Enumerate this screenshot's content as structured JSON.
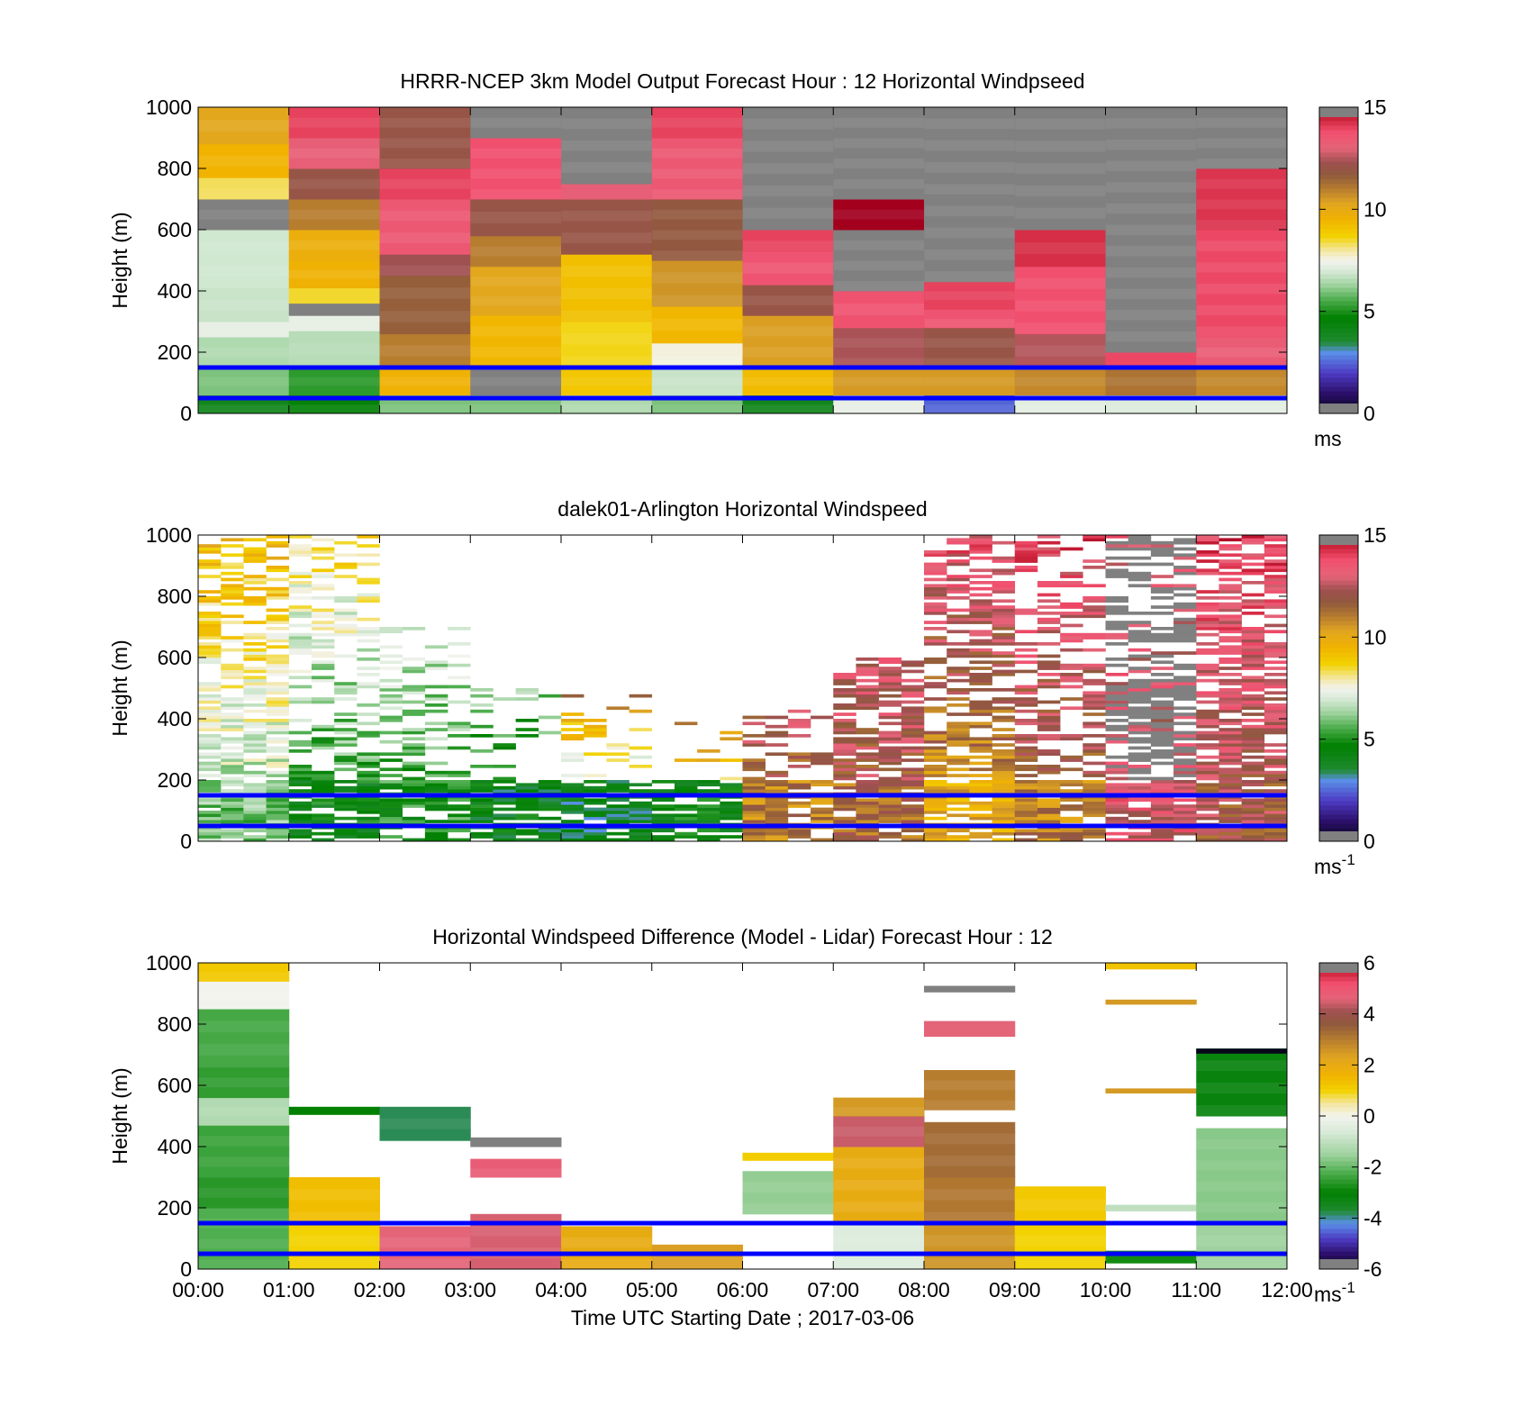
{
  "chart_data": [
    {
      "type": "heatmap",
      "title": "HRRR-NCEP 3km Model Output   Forecast Hour : 12 Horizontal Windpseed",
      "xlabel": "",
      "ylabel": "Height (m)",
      "ylim": [
        0,
        1000
      ],
      "yticks": [
        "0",
        "200",
        "400",
        "600",
        "800",
        "1000"
      ],
      "colorbar": {
        "range": [
          0,
          15
        ],
        "ticks": [
          "0",
          "5",
          "10",
          "15"
        ],
        "unit": "ms",
        "unit_sup": ""
      },
      "reference_lines_m": [
        50,
        150
      ],
      "sample": "model",
      "rows": [
        {
          "hour": 0,
          "cells": [
            [
              0,
              60,
              "s4"
            ],
            [
              60,
              150,
              "s6"
            ],
            [
              150,
              250,
              "s6.5"
            ],
            [
              250,
              300,
              "s7.3"
            ],
            [
              300,
              410,
              "s6.8"
            ],
            [
              410,
              600,
              "s6.9"
            ],
            [
              600,
              700,
              "gray"
            ],
            [
              700,
              770,
              "s8.3"
            ],
            [
              770,
              880,
              "s9.5"
            ],
            [
              880,
              1000,
              "s10.2"
            ]
          ]
        },
        {
          "hour": 1,
          "cells": [
            [
              0,
              60,
              "s4.5"
            ],
            [
              60,
              150,
              "s5.2"
            ],
            [
              150,
              270,
              "s6.6"
            ],
            [
              270,
              320,
              "s7.3"
            ],
            [
              320,
              360,
              "gray"
            ],
            [
              360,
              410,
              "s8.5"
            ],
            [
              410,
              500,
              "s9.6"
            ],
            [
              500,
              600,
              "s9.8"
            ],
            [
              600,
              700,
              "s11"
            ],
            [
              700,
              800,
              "s12"
            ],
            [
              800,
              900,
              "s13.2"
            ],
            [
              900,
              1000,
              "s14"
            ]
          ]
        },
        {
          "hour": 2,
          "cells": [
            [
              0,
              60,
              "s6"
            ],
            [
              60,
              150,
              "s9.6"
            ],
            [
              150,
              260,
              "s11"
            ],
            [
              260,
              450,
              "s11.6"
            ],
            [
              450,
              520,
              "s12.3"
            ],
            [
              520,
              700,
              "s13.5"
            ],
            [
              700,
              800,
              "s14"
            ],
            [
              800,
              1000,
              "s12"
            ]
          ]
        },
        {
          "hour": 3,
          "cells": [
            [
              0,
              60,
              "s6"
            ],
            [
              60,
              150,
              "gray"
            ],
            [
              150,
              320,
              "s9.4"
            ],
            [
              320,
              480,
              "s10.2"
            ],
            [
              480,
              580,
              "s11"
            ],
            [
              580,
              700,
              "s12"
            ],
            [
              700,
              900,
              "s13.8"
            ],
            [
              900,
              1000,
              "gray"
            ]
          ]
        },
        {
          "hour": 4,
          "cells": [
            [
              0,
              60,
              "s6.5"
            ],
            [
              60,
              150,
              "s9"
            ],
            [
              150,
              300,
              "s8.6"
            ],
            [
              300,
              520,
              "s9.2"
            ],
            [
              520,
              700,
              "s12"
            ],
            [
              700,
              750,
              "s13.2"
            ],
            [
              750,
              1000,
              "gray"
            ]
          ]
        },
        {
          "hour": 5,
          "cells": [
            [
              0,
              60,
              "s6"
            ],
            [
              60,
              150,
              "s6.8"
            ],
            [
              150,
              230,
              "s7.6"
            ],
            [
              230,
              350,
              "s9.4"
            ],
            [
              350,
              500,
              "s10.6"
            ],
            [
              500,
              700,
              "s11.8"
            ],
            [
              700,
              900,
              "s13.5"
            ],
            [
              900,
              1000,
              "s14"
            ]
          ]
        },
        {
          "hour": 6,
          "cells": [
            [
              0,
              60,
              "s4"
            ],
            [
              60,
              150,
              "s9.3"
            ],
            [
              150,
              320,
              "s10.4"
            ],
            [
              320,
              420,
              "s12"
            ],
            [
              420,
              530,
              "s13.6"
            ],
            [
              530,
              600,
              "s14"
            ],
            [
              600,
              1000,
              "gray"
            ]
          ]
        },
        {
          "hour": 7,
          "cells": [
            [
              0,
              60,
              "s7.3"
            ],
            [
              60,
              150,
              "s10.5"
            ],
            [
              150,
              280,
              "s12.4"
            ],
            [
              280,
              400,
              "s13.7"
            ],
            [
              400,
              600,
              "gray"
            ],
            [
              600,
              700,
              "s15"
            ],
            [
              700,
              1000,
              "gray"
            ]
          ]
        },
        {
          "hour": 8,
          "cells": [
            [
              0,
              60,
              "s2.5"
            ],
            [
              60,
              150,
              "s10.5"
            ],
            [
              150,
              280,
              "s12"
            ],
            [
              280,
              340,
              "s13.6"
            ],
            [
              340,
              430,
              "s14"
            ],
            [
              430,
              1000,
              "gray"
            ]
          ]
        },
        {
          "hour": 9,
          "cells": [
            [
              0,
              60,
              "s7.2"
            ],
            [
              60,
              150,
              "s10.8"
            ],
            [
              150,
              260,
              "s12.5"
            ],
            [
              260,
              480,
              "s13.8"
            ],
            [
              480,
              600,
              "s14.3"
            ],
            [
              600,
              1000,
              "gray"
            ]
          ]
        },
        {
          "hour": 10,
          "cells": [
            [
              0,
              60,
              "s7.1"
            ],
            [
              60,
              150,
              "s11.2"
            ],
            [
              150,
              200,
              "s13.9"
            ],
            [
              200,
              1000,
              "gray"
            ]
          ]
        },
        {
          "hour": 11,
          "cells": [
            [
              0,
              60,
              "s7.2"
            ],
            [
              60,
              150,
              "s10.8"
            ],
            [
              150,
              250,
              "s13.3"
            ],
            [
              250,
              600,
              "s13.9"
            ],
            [
              600,
              800,
              "s14.2"
            ],
            [
              800,
              1000,
              "gray"
            ]
          ]
        }
      ]
    },
    {
      "type": "heatmap",
      "title": "dalek01-Arlington  Horizontal Windspeed",
      "xlabel": "",
      "ylabel": "Height (m)",
      "ylim": [
        0,
        1000
      ],
      "yticks": [
        "0",
        "200",
        "400",
        "600",
        "800",
        "1000"
      ],
      "colorbar": {
        "range": [
          0,
          15
        ],
        "ticks": [
          "0",
          "5",
          "10",
          "15"
        ],
        "unit": "ms",
        "unit_sup": "-1"
      },
      "reference_lines_m": [
        50,
        150
      ],
      "sample": "lidar",
      "profiles": [
        {
          "hour": 0,
          "top_m": 1000,
          "lower": "s6",
          "upper": "s9.5",
          "density": 0.85
        },
        {
          "hour": 1,
          "top_m": 1000,
          "lower": "s4.5",
          "upper": "s8.5",
          "density": 0.6
        },
        {
          "hour": 2,
          "top_m": 700,
          "lower": "s5",
          "upper": "s7",
          "density": 0.5
        },
        {
          "hour": 3,
          "top_m": 500,
          "lower": "s4.2",
          "upper": "s6",
          "density": 0.35
        },
        {
          "hour": 4,
          "top_m": 480,
          "lower": "s4",
          "upper": "s11",
          "density": 0.3
        },
        {
          "hour": 5,
          "top_m": 420,
          "lower": "s4.5",
          "upper": "s12",
          "density": 0.2
        },
        {
          "hour": 6,
          "top_m": 430,
          "lower": "s11",
          "upper": "s12.5",
          "density": 0.45
        },
        {
          "hour": 7,
          "top_m": 600,
          "lower": "s11.5",
          "upper": "s13",
          "density": 0.85
        },
        {
          "hour": 8,
          "top_m": 1000,
          "lower": "s10",
          "upper": "s13.5",
          "density": 0.75
        },
        {
          "hour": 9,
          "top_m": 1000,
          "lower": "s11",
          "upper": "s13.8",
          "density": 0.55
        },
        {
          "hour": 10,
          "top_m": 1000,
          "lower": "s13",
          "upper": "gray",
          "density": 0.75
        },
        {
          "hour": 11,
          "top_m": 1000,
          "lower": "s12",
          "upper": "s13.9",
          "density": 0.9
        }
      ]
    },
    {
      "type": "heatmap",
      "title": "Horizontal Windspeed Difference (Model - Lidar) Forecast Hour : 12",
      "xlabel": "Time UTC  Starting Date ; 2017-03-06",
      "ylabel": "Height (m)",
      "ylim": [
        0,
        1000
      ],
      "yticks": [
        "0",
        "200",
        "400",
        "600",
        "800",
        "1000"
      ],
      "xticks": [
        "00:00",
        "01:00",
        "02:00",
        "03:00",
        "04:00",
        "05:00",
        "06:00",
        "07:00",
        "08:00",
        "09:00",
        "10:00",
        "11:00",
        "12:00"
      ],
      "colorbar": {
        "range": [
          -6,
          6
        ],
        "ticks": [
          "-6",
          "-4",
          "-2",
          "0",
          "2",
          "4",
          "6"
        ],
        "unit": "ms",
        "unit_sup": "-1"
      },
      "reference_lines_m": [
        50,
        150
      ],
      "sample": "difference",
      "rows": [
        {
          "hour": 0,
          "cells": [
            [
              0,
              200,
              "d-2.2"
            ],
            [
              200,
              300,
              "d-2.6"
            ],
            [
              300,
              470,
              "d-2.4"
            ],
            [
              470,
              560,
              "d-1.2"
            ],
            [
              560,
              660,
              "d-2.5"
            ],
            [
              660,
              850,
              "d-2.3"
            ],
            [
              850,
              940,
              "d0"
            ],
            [
              940,
              1000,
              "d1.2"
            ]
          ]
        },
        {
          "hour": 1,
          "cells": [
            [
              0,
              150,
              "d1"
            ],
            [
              150,
              300,
              "d1.4"
            ],
            [
              505,
              530,
              "d-3"
            ]
          ]
        },
        {
          "hour": 2,
          "cells": [
            [
              0,
              140,
              "d4.6"
            ],
            [
              420,
              530,
              "d-3.8"
            ]
          ]
        },
        {
          "hour": 3,
          "cells": [
            [
              0,
              180,
              "d4.5"
            ],
            [
              300,
              360,
              "d4.8"
            ],
            [
              400,
              430,
              "gray"
            ]
          ]
        },
        {
          "hour": 4,
          "cells": [
            [
              0,
              140,
              "d2"
            ]
          ]
        },
        {
          "hour": 5,
          "cells": [
            [
              0,
              80,
              "d2.4"
            ]
          ]
        },
        {
          "hour": 6,
          "cells": [
            [
              180,
              320,
              "d-1.6"
            ],
            [
              355,
              380,
              "d1.1"
            ]
          ]
        },
        {
          "hour": 7,
          "cells": [
            [
              0,
              150,
              "d-0.5"
            ],
            [
              150,
              400,
              "d2"
            ],
            [
              400,
              500,
              "d4.4"
            ],
            [
              500,
              560,
              "d2.5"
            ]
          ]
        },
        {
          "hour": 8,
          "cells": [
            [
              0,
              150,
              "d2.6"
            ],
            [
              150,
              300,
              "d3.1"
            ],
            [
              300,
              480,
              "d3.3"
            ],
            [
              520,
              650,
              "d3"
            ],
            [
              760,
              810,
              "d4.6"
            ],
            [
              905,
              925,
              "gray"
            ]
          ]
        },
        {
          "hour": 9,
          "cells": [
            [
              0,
              150,
              "d1"
            ],
            [
              150,
              270,
              "d1.2"
            ]
          ]
        },
        {
          "hour": 10,
          "cells": [
            [
              20,
              60,
              "d-2.8"
            ],
            [
              190,
              210,
              "d-1"
            ],
            [
              575,
              590,
              "d2.5"
            ],
            [
              865,
              880,
              "d2.5"
            ],
            [
              980,
              1000,
              "d1.3"
            ]
          ]
        },
        {
          "hour": 11,
          "cells": [
            [
              0,
              150,
              "d-1.5"
            ],
            [
              150,
              460,
              "d-1.7"
            ],
            [
              500,
              720,
              "d-3.2"
            ],
            [
              705,
              720,
              "d-6"
            ]
          ]
        }
      ]
    }
  ]
}
